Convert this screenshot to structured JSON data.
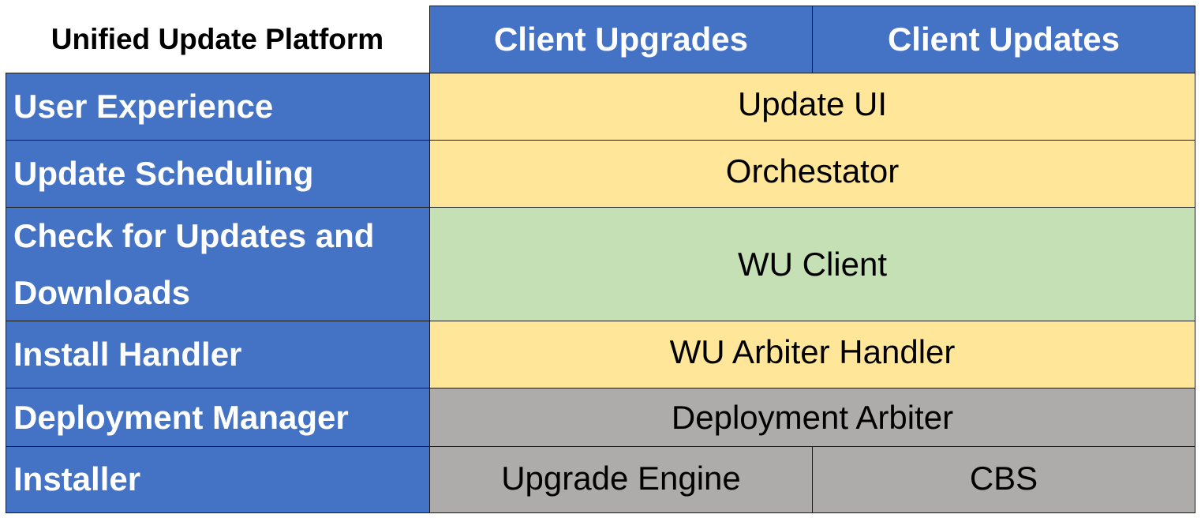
{
  "title": "Unified Update Platform",
  "columns": [
    "Client Upgrades",
    "Client Updates"
  ],
  "rows": [
    {
      "label": "User Experience",
      "cells": [
        "Update UI"
      ]
    },
    {
      "label": "Update Scheduling",
      "cells": [
        "Orchestator"
      ]
    },
    {
      "label": "Check for Updates and Downloads",
      "cells": [
        "WU Client"
      ]
    },
    {
      "label": "Install Handler",
      "cells": [
        "WU Arbiter Handler"
      ]
    },
    {
      "label": "Deployment Manager",
      "cells": [
        "Deployment Arbiter"
      ]
    },
    {
      "label": "Installer",
      "cells": [
        "Upgrade Engine",
        "CBS"
      ]
    }
  ],
  "colors": {
    "header": "#4472C4",
    "yellow": "#FFE699",
    "green": "#C5E0B4",
    "gray": "#AEABAB"
  }
}
